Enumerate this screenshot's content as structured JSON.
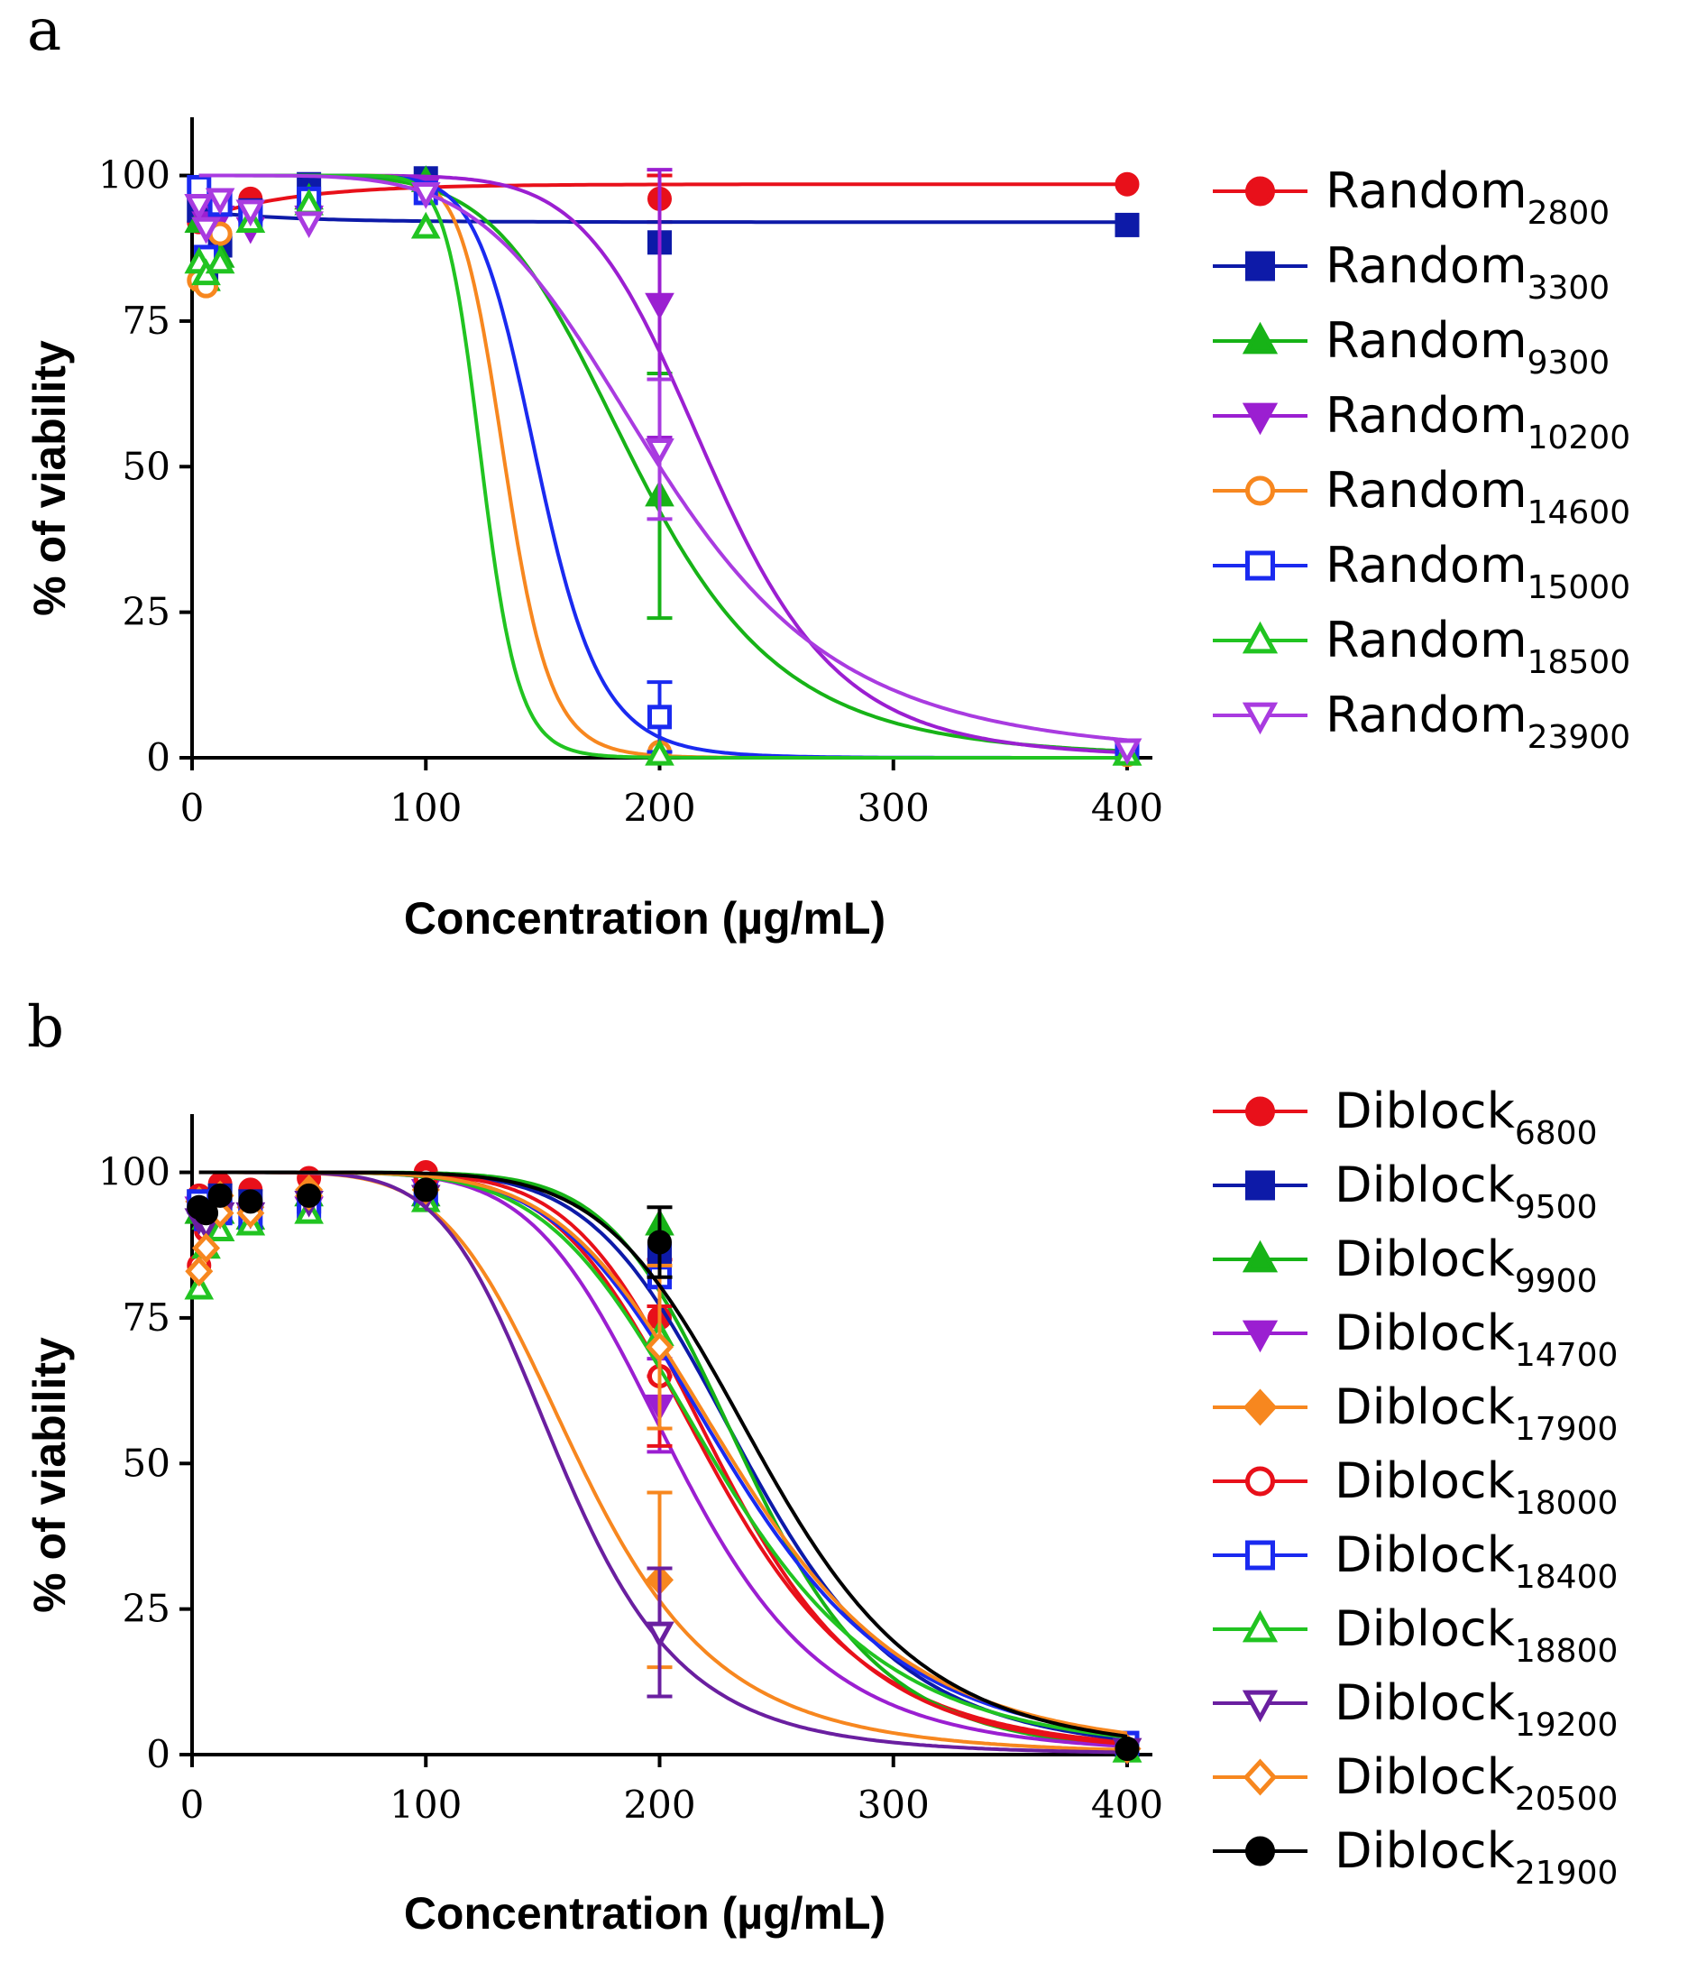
{
  "chart_data": [
    {
      "type": "line",
      "panel_label": "a",
      "xlabel": "Concentration (µg/mL)",
      "ylabel": "% of viability",
      "xlim": [
        0,
        400
      ],
      "ylim": [
        0,
        110
      ],
      "xticks": [
        "0",
        "100",
        "200",
        "300",
        "400"
      ],
      "yticks": [
        "0",
        "25",
        "50",
        "75",
        "100"
      ],
      "x": [
        3,
        6,
        12,
        25,
        50,
        100,
        200,
        400
      ],
      "series": [
        {
          "name": "Random",
          "sub": "2800",
          "color": "#e8101a",
          "marker": "circle",
          "filled": true,
          "values": [
            92,
            94,
            95,
            96,
            96,
            98,
            96,
            98.5
          ],
          "err": {
            "200": 4
          },
          "fit": {
            "kind": "flat",
            "top": 98.5
          }
        },
        {
          "name": "Random",
          "sub": "3300",
          "color": "#0d1aa8",
          "marker": "square",
          "filled": true,
          "values": [
            94,
            84,
            88,
            94,
            98.5,
            99.5,
            88.5,
            91.5
          ],
          "err": {},
          "fit": {
            "kind": "flat",
            "top": 92
          }
        },
        {
          "name": "Random",
          "sub": "9300",
          "color": "#17b317",
          "marker": "triangle-up",
          "filled": true,
          "values": [
            92,
            82,
            86,
            92,
            96,
            99,
            45,
            0.5
          ],
          "err": {
            "200": 21
          },
          "fit": {
            "kind": "sigmoid",
            "top": 100,
            "ic50": 190,
            "hill": 6
          }
        },
        {
          "name": "Random",
          "sub": "10200",
          "color": "#9b1fd1",
          "marker": "triangle-down",
          "filled": true,
          "values": [
            95,
            92,
            93,
            91,
            93,
            98,
            78,
            1.5
          ],
          "err": {
            "200": 23
          },
          "fit": {
            "kind": "sigmoid",
            "top": 100,
            "ic50": 222,
            "hill": 8
          }
        },
        {
          "name": "Random",
          "sub": "14600",
          "color": "#f7871f",
          "marker": "circle",
          "filled": false,
          "values": [
            82,
            81,
            90,
            93,
            95,
            97,
            1,
            0.5
          ],
          "err": {},
          "fit": {
            "kind": "sigmoid",
            "top": 100,
            "ic50": 134,
            "hill": 14
          }
        },
        {
          "name": "Random",
          "sub": "15000",
          "color": "#1a2af0",
          "marker": "square",
          "filled": false,
          "values": [
            98,
            86,
            95,
            93,
            96,
            97,
            7,
            1
          ],
          "err": {
            "200": 6
          },
          "fit": {
            "kind": "sigmoid",
            "top": 100,
            "ic50": 148,
            "hill": 11
          }
        },
        {
          "name": "Random",
          "sub": "18500",
          "color": "#21c421",
          "marker": "triangle-up",
          "filled": false,
          "values": [
            85,
            83,
            85,
            92,
            95,
            91,
            0.5,
            0.5
          ],
          "err": {},
          "fit": {
            "kind": "sigmoid",
            "top": 100,
            "ic50": 124,
            "hill": 16
          }
        },
        {
          "name": "Random",
          "sub": "23900",
          "color": "#a93be0",
          "marker": "triangle-down",
          "filled": false,
          "values": [
            95,
            91,
            96,
            94,
            92,
            97,
            53,
            1.5
          ],
          "err": {
            "200": 12
          },
          "fit": {
            "kind": "sigmoid",
            "top": 100,
            "ic50": 200,
            "hill": 5
          }
        }
      ]
    },
    {
      "type": "line",
      "panel_label": "b",
      "xlabel": "Concentration (µg/mL)",
      "ylabel": "% of viability",
      "xlim": [
        0,
        400
      ],
      "ylim": [
        0,
        110
      ],
      "xticks": [
        "0",
        "100",
        "200",
        "300",
        "400"
      ],
      "yticks": [
        "0",
        "25",
        "50",
        "75",
        "100"
      ],
      "x": [
        3,
        6,
        12,
        25,
        50,
        100,
        200,
        400
      ],
      "series": [
        {
          "name": "Diblock",
          "sub": "6800",
          "color": "#e8101a",
          "marker": "circle",
          "filled": true,
          "values": [
            96,
            94,
            98,
            97,
            99,
            100,
            75,
            1
          ],
          "err": {
            "200": 10
          },
          "fit": {
            "kind": "sigmoid",
            "top": 100,
            "ic50": 222,
            "hill": 6.5
          }
        },
        {
          "name": "Diblock",
          "sub": "9500",
          "color": "#0d1aa8",
          "marker": "square",
          "filled": true,
          "values": [
            95,
            93,
            96,
            95,
            95,
            97,
            86,
            1.5
          ],
          "err": {},
          "fit": {
            "kind": "sigmoid",
            "top": 100,
            "ic50": 238,
            "hill": 7
          }
        },
        {
          "name": "Diblock",
          "sub": "9900",
          "color": "#17b317",
          "marker": "triangle-up",
          "filled": true,
          "values": [
            93,
            92,
            93,
            92,
            96,
            96,
            91,
            0.5
          ],
          "err": {},
          "fit": {
            "kind": "sigmoid",
            "top": 100,
            "ic50": 237,
            "hill": 8
          }
        },
        {
          "name": "Diblock",
          "sub": "14700",
          "color": "#9b1fd1",
          "marker": "triangle-down",
          "filled": true,
          "values": [
            94,
            93,
            93,
            93,
            94,
            97,
            60,
            1
          ],
          "err": {
            "200": 8
          },
          "fit": {
            "kind": "sigmoid",
            "top": 100,
            "ic50": 208,
            "hill": 6.5
          }
        },
        {
          "name": "Diblock",
          "sub": "17900",
          "color": "#f7871f",
          "marker": "diamond",
          "filled": true,
          "values": [
            95,
            94,
            96,
            94,
            97,
            97,
            30,
            1
          ],
          "err": {
            "200": 15
          },
          "fit": {
            "kind": "sigmoid",
            "top": 100,
            "ic50": 166,
            "hill": 5.5
          }
        },
        {
          "name": "Diblock",
          "sub": "18000",
          "color": "#e8101a",
          "marker": "circle",
          "filled": false,
          "values": [
            84,
            90,
            94,
            94,
            95,
            99,
            65,
            1
          ],
          "err": {
            "200": 12
          },
          "fit": {
            "kind": "sigmoid",
            "top": 100,
            "ic50": 226,
            "hill": 7
          }
        },
        {
          "name": "Diblock",
          "sub": "18400",
          "color": "#1a2af0",
          "marker": "square",
          "filled": false,
          "values": [
            95,
            92,
            93,
            92,
            94,
            96,
            82,
            2
          ],
          "err": {},
          "fit": {
            "kind": "sigmoid",
            "top": 100,
            "ic50": 230,
            "hill": 6
          }
        },
        {
          "name": "Diblock",
          "sub": "18800",
          "color": "#21c421",
          "marker": "triangle-up",
          "filled": false,
          "values": [
            80,
            87,
            90,
            91,
            93,
            95,
            72,
            0.5
          ],
          "err": {},
          "fit": {
            "kind": "sigmoid",
            "top": 100,
            "ic50": 224,
            "hill": 6
          }
        },
        {
          "name": "Diblock",
          "sub": "19200",
          "color": "#6a1fa0",
          "marker": "triangle-down",
          "filled": false,
          "values": [
            92,
            91,
            93,
            93,
            95,
            96,
            21,
            1
          ],
          "err": {
            "200": 11
          },
          "fit": {
            "kind": "sigmoid",
            "top": 100,
            "ic50": 158,
            "hill": 6
          }
        },
        {
          "name": "Diblock",
          "sub": "20500",
          "color": "#f7871f",
          "marker": "diamond",
          "filled": false,
          "values": [
            83,
            87,
            93,
            93,
            96,
            97,
            70,
            1
          ],
          "err": {
            "200": 14
          },
          "fit": {
            "kind": "sigmoid",
            "top": 100,
            "ic50": 232,
            "hill": 6
          }
        },
        {
          "name": "Diblock",
          "sub": "21900",
          "color": "#000000",
          "marker": "circle",
          "filled": true,
          "values": [
            94,
            93,
            96,
            95,
            96,
            97,
            88,
            1
          ],
          "err": {
            "200": 6
          },
          "fit": {
            "kind": "sigmoid",
            "top": 100,
            "ic50": 245,
            "hill": 7
          }
        }
      ]
    }
  ]
}
